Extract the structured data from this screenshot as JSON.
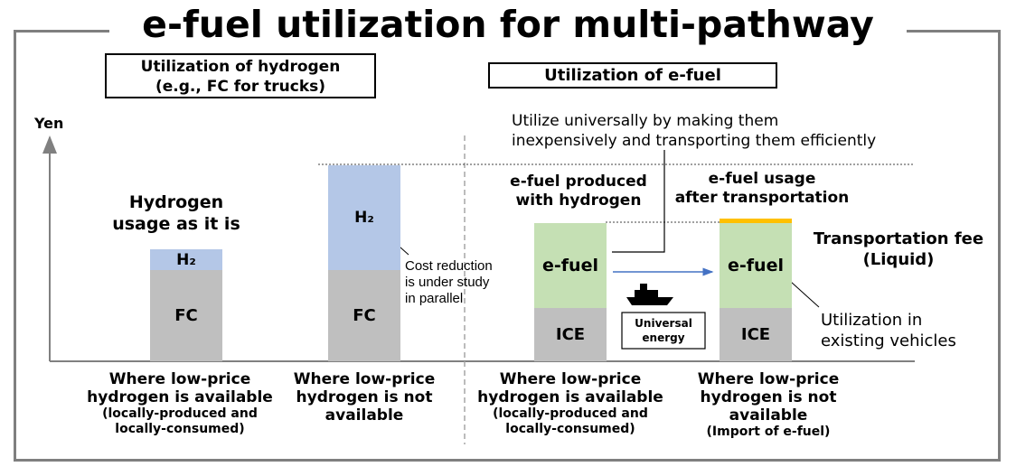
{
  "title": "e-fuel utilization for multi-pathway",
  "sections": {
    "hydrogen_box": [
      "Utilization of hydrogen",
      "(e.g., FC for trucks)"
    ],
    "efuel_box": "Utilization of e-fuel"
  },
  "axis": {
    "ylabel": "Yen"
  },
  "labels": {
    "hydrogen_usage": [
      "Hydrogen",
      "usage as it is"
    ],
    "efuel_with_hydrogen": [
      "e-fuel produced",
      "with hydrogen"
    ],
    "efuel_after_transport": [
      "e-fuel usage",
      "after transportation"
    ],
    "utilize_universally": [
      "Utilize universally by making them",
      "inexpensively and transporting them efficiently"
    ],
    "cost_reduction": [
      "Cost reduction",
      "is under study",
      "in parallel"
    ],
    "transportation_fee": [
      "Transportation fee",
      "(Liquid)"
    ],
    "existing_vehicles": [
      "Utilization in",
      "existing vehicles"
    ],
    "universal_energy": [
      "Universal",
      "energy"
    ]
  },
  "bars": [
    {
      "segments": [
        {
          "label": "FC",
          "value": 57
        },
        {
          "label": "H₂",
          "value": 13
        }
      ]
    },
    {
      "segments": [
        {
          "label": "FC",
          "value": 57
        },
        {
          "label": "H₂",
          "value": 65
        }
      ]
    },
    {
      "segments": [
        {
          "label": "ICE",
          "value": 33
        },
        {
          "label": "e-fuel",
          "value": 53
        }
      ]
    },
    {
      "segments": [
        {
          "label": "ICE",
          "value": 33
        },
        {
          "label": "e-fuel",
          "value": 53
        },
        {
          "label": "",
          "value": 3
        }
      ]
    }
  ],
  "categories": [
    {
      "main": [
        "Where low-price",
        "hydrogen is available"
      ],
      "sub": [
        "(locally-produced and",
        "locally-consumed)"
      ]
    },
    {
      "main": [
        "Where low-price",
        "hydrogen is not",
        "available"
      ],
      "sub": []
    },
    {
      "main": [
        "Where low-price",
        "hydrogen is available"
      ],
      "sub": [
        "(locally-produced and",
        "locally-consumed)"
      ]
    },
    {
      "main": [
        "Where low-price",
        "hydrogen is not",
        "available"
      ],
      "sub": [
        "(Import of e-fuel)"
      ]
    }
  ],
  "colors": {
    "fc": "#bfbfbf",
    "h2": "#b4c7e7",
    "efuel": "#c5e0b4",
    "transport_fee": "#ffc000",
    "frame": "#7f7f7f",
    "arrow": "#4472c4"
  },
  "icons": {
    "ship": "ship-icon"
  }
}
